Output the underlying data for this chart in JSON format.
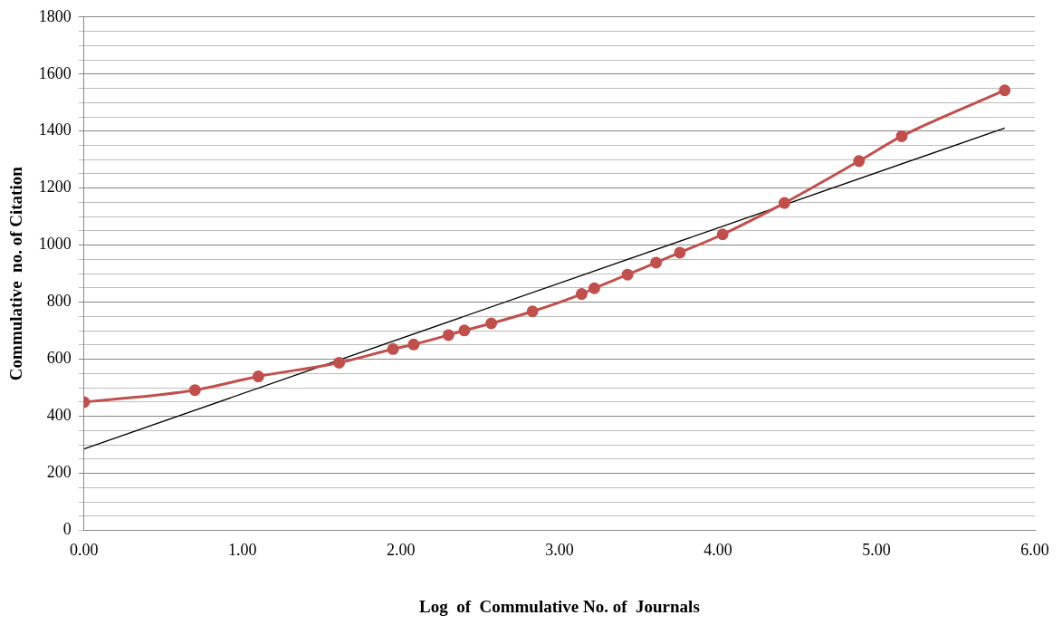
{
  "chart_data": {
    "type": "line",
    "xlabel": "Log  of  Commulative No. of  Journals",
    "ylabel": "Commulative  no. of Citation",
    "xlim": [
      0,
      6
    ],
    "xticks": [
      {
        "value": 0,
        "label": "0.00"
      },
      {
        "value": 1,
        "label": "1.00"
      },
      {
        "value": 2,
        "label": "2.00"
      },
      {
        "value": 3,
        "label": "3.00"
      },
      {
        "value": 4,
        "label": "4.00"
      },
      {
        "value": 5,
        "label": "5.00"
      },
      {
        "value": 6,
        "label": "6.00"
      }
    ],
    "ylim": [
      0,
      1800
    ],
    "yticks": [
      0,
      {
        "value": 50,
        "label": null
      },
      {
        "value": 100,
        "label": null
      },
      {
        "value": 150,
        "label": null
      },
      200,
      {
        "value": 250,
        "label": null
      },
      {
        "value": 300,
        "label": null
      },
      {
        "value": 350,
        "label": null
      },
      400,
      {
        "value": 450,
        "label": null
      },
      {
        "value": 500,
        "label": null
      },
      {
        "value": 550,
        "label": null
      },
      600,
      {
        "value": 650,
        "label": null
      },
      {
        "value": 700,
        "label": null
      },
      {
        "value": 750,
        "label": null
      },
      800,
      {
        "value": 850,
        "label": null
      },
      {
        "value": 900,
        "label": null
      },
      {
        "value": 950,
        "label": null
      },
      1000,
      {
        "value": 1050,
        "label": null
      },
      {
        "value": 1100,
        "label": null
      },
      {
        "value": 1150,
        "label": null
      },
      1200,
      {
        "value": 1250,
        "label": null
      },
      {
        "value": 1300,
        "label": null
      },
      {
        "value": 1350,
        "label": null
      },
      1400,
      {
        "value": 1450,
        "label": null
      },
      {
        "value": 1500,
        "label": null
      },
      {
        "value": 1550,
        "label": null
      },
      1600,
      {
        "value": 1650,
        "label": null
      },
      {
        "value": 1700,
        "label": null
      },
      {
        "value": 1750,
        "label": null
      },
      1800
    ],
    "grid": "y",
    "legend": false,
    "marker": "circle",
    "series": [
      {
        "color": "#c0504d",
        "x": [
          0,
          0.7,
          1.1,
          1.61,
          1.95,
          2.08,
          2.3,
          2.4,
          2.57,
          2.83,
          3.14,
          3.22,
          3.43,
          3.61,
          3.76,
          4.03,
          4.42,
          4.89,
          5.16,
          5.81
        ],
        "values": [
          450,
          492,
          540,
          588,
          636,
          652,
          685,
          701,
          726,
          768,
          829,
          849,
          897,
          939,
          974,
          1038,
          1148,
          1295,
          1382,
          1543
        ]
      },
      {
        "type": "line",
        "color": "#000000",
        "marker": "none",
        "x": [
          0,
          5.81
        ],
        "values": [
          286,
          1411
        ]
      }
    ]
  }
}
